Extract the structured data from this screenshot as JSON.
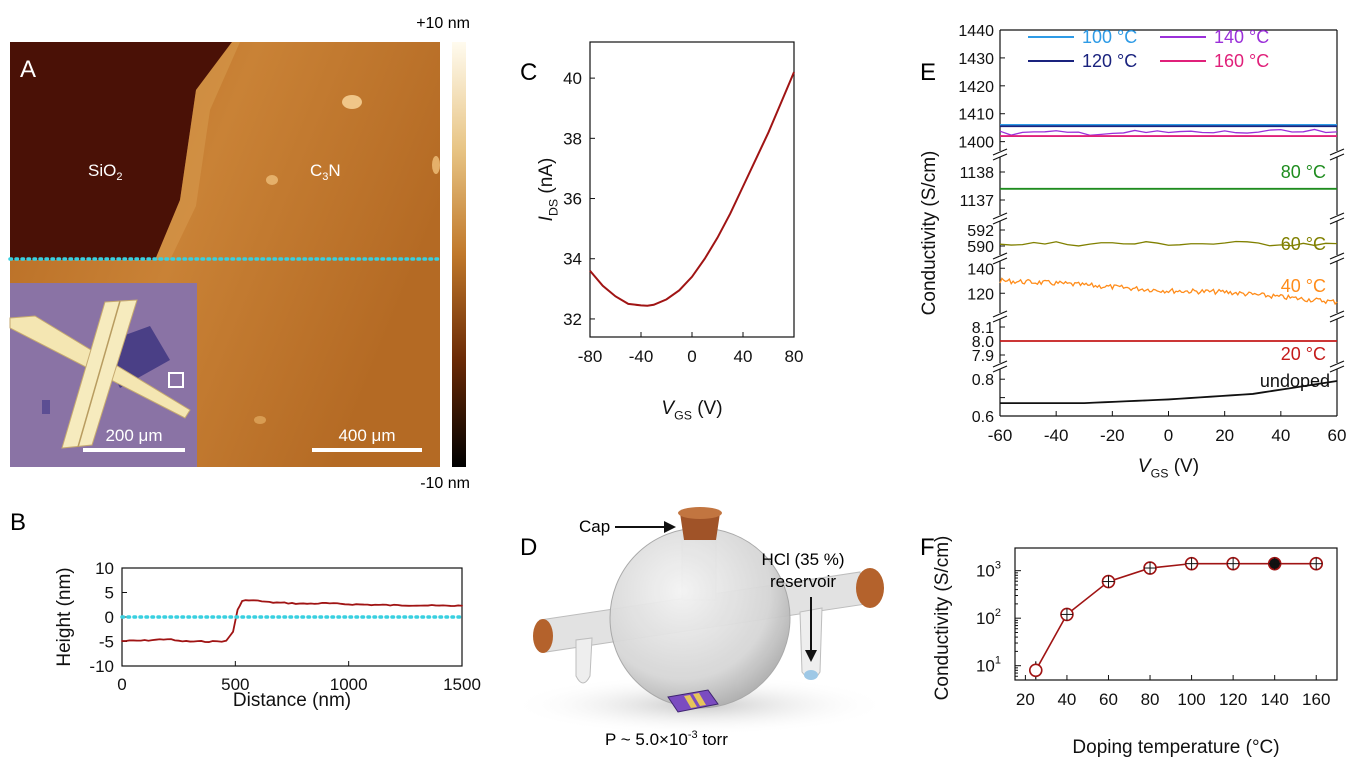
{
  "panels": {
    "A": {
      "letter": "A",
      "colorbar_top": "+10 nm",
      "colorbar_bottom": "-10 nm",
      "label_sio2": "SiO",
      "label_sio2_sub": "2",
      "label_c3n_main": "C",
      "label_c3n_sub": "3",
      "label_c3n_end": "N",
      "scale_inset": "200 μm",
      "scale_main": "400 μm"
    },
    "B": {
      "letter": "B"
    },
    "C": {
      "letter": "C"
    },
    "D": {
      "letter": "D",
      "label_cap": "Cap",
      "label_hcl_1": "HCl (35 %)",
      "label_hcl_2": "reservoir",
      "label_pressure": "P ~ 5.0×10",
      "label_pressure_exp": "-3",
      "label_pressure_unit": " torr"
    },
    "E": {
      "letter": "E"
    },
    "F": {
      "letter": "F"
    }
  },
  "chart_data": [
    {
      "panel": "B",
      "type": "line",
      "xlabel": "Distance (nm)",
      "ylabel": "Height (nm)",
      "xlim": [
        0,
        1500
      ],
      "ylim": [
        -10,
        10
      ],
      "xticks": [
        0,
        500,
        1000,
        1500
      ],
      "yticks": [
        -10,
        -5,
        0,
        5,
        10
      ],
      "series": [
        {
          "color": "#a01414",
          "x": [
            0,
            100,
            200,
            250,
            300,
            400,
            460,
            490,
            510,
            530,
            560,
            600,
            650,
            700,
            800,
            900,
            1000,
            1100,
            1200,
            1300,
            1400,
            1500
          ],
          "y": [
            -4.9,
            -4.8,
            -4.5,
            -4.9,
            -5.0,
            -5.0,
            -4.9,
            -3.0,
            1.5,
            3.2,
            3.5,
            3.3,
            3.0,
            2.9,
            2.7,
            2.8,
            2.6,
            2.5,
            2.4,
            2.4,
            2.3,
            2.3
          ]
        },
        {
          "color": "#39d0e0",
          "dotted": true,
          "x": [
            0,
            1500
          ],
          "y": [
            0,
            0
          ]
        }
      ]
    },
    {
      "panel": "C",
      "type": "line",
      "xlabel": "V",
      "xlabel_sub": "GS",
      "xlabel_unit": " (V)",
      "ylabel": "I",
      "ylabel_sub": "DS",
      "ylabel_unit": " (nA)",
      "xlim": [
        -80,
        80
      ],
      "ylim": [
        31.4,
        41.2
      ],
      "xticks": [
        -80,
        -40,
        0,
        40,
        80
      ],
      "yticks": [
        32,
        34,
        36,
        38,
        40
      ],
      "series": [
        {
          "color": "#a01414",
          "x": [
            -80,
            -70,
            -60,
            -50,
            -40,
            -35,
            -30,
            -20,
            -10,
            0,
            10,
            20,
            30,
            40,
            50,
            60,
            70,
            80
          ],
          "y": [
            33.6,
            33.1,
            32.75,
            32.5,
            32.45,
            32.44,
            32.47,
            32.65,
            32.95,
            33.4,
            34.0,
            34.7,
            35.5,
            36.4,
            37.3,
            38.2,
            39.2,
            40.2
          ]
        }
      ]
    },
    {
      "panel": "E",
      "type": "line",
      "broken_axis": true,
      "xlabel": "V",
      "xlabel_sub": "GS",
      "xlabel_unit": " (V)",
      "ylabel": "Conductivity (S/cm)",
      "xlim": [
        -60,
        60
      ],
      "xticks": [
        -60,
        -40,
        -20,
        0,
        20,
        40,
        60
      ],
      "segments": [
        {
          "yticks": [
            0.6,
            0.7,
            0.8
          ],
          "tick_labels": [
            "0.6",
            "",
            "0.8"
          ],
          "ylim": [
            0.6,
            0.85
          ]
        },
        {
          "yticks": [
            7.9,
            8.0,
            8.1
          ],
          "tick_labels": [
            "7.9",
            "8.0",
            "8.1"
          ],
          "ylim": [
            7.85,
            8.15
          ]
        },
        {
          "yticks": [
            120,
            140
          ],
          "tick_labels": [
            "120",
            "140"
          ],
          "ylim": [
            105,
            145
          ]
        },
        {
          "yticks": [
            590,
            592
          ],
          "tick_labels": [
            "590",
            "592"
          ],
          "ylim": [
            589,
            593
          ]
        },
        {
          "yticks": [
            1137,
            1138
          ],
          "tick_labels": [
            "1137",
            "1138"
          ],
          "ylim": [
            1136.5,
            1138.5
          ]
        },
        {
          "yticks": [
            1400,
            1410,
            1420,
            1430,
            1440
          ],
          "tick_labels": [
            "1400",
            "1410",
            "1420",
            "1430",
            "1440"
          ],
          "ylim": [
            1397,
            1440
          ]
        }
      ],
      "series": [
        {
          "name": "undoped",
          "color": "#111111",
          "segment": 0,
          "x": [
            -60,
            -30,
            0,
            30,
            60
          ],
          "y": [
            0.67,
            0.67,
            0.69,
            0.72,
            0.79
          ]
        },
        {
          "name": "20 °C",
          "color": "#c41a1a",
          "segment": 1,
          "x": [
            -60,
            60
          ],
          "y": [
            8.0,
            8.0
          ]
        },
        {
          "name": "40 °C",
          "color": "#ff8c1a",
          "segment": 2,
          "x": [
            -60,
            -40,
            -20,
            0,
            20,
            40,
            60
          ],
          "y": [
            130,
            128,
            125,
            122,
            121,
            117,
            113
          ],
          "noisy": true
        },
        {
          "name": "60 °C",
          "color": "#808000",
          "segment": 3,
          "x": [
            -60,
            60
          ],
          "y": [
            590.3,
            590.3
          ],
          "noisy": true
        },
        {
          "name": "80 °C",
          "color": "#1e8c1e",
          "segment": 4,
          "x": [
            -60,
            60
          ],
          "y": [
            1137.4,
            1137.4
          ]
        },
        {
          "name": "100 °C",
          "color": "#2e9be6",
          "segment": 5,
          "x": [
            -60,
            60
          ],
          "y": [
            1406,
            1406
          ]
        },
        {
          "name": "120 °C",
          "color": "#1a237e",
          "segment": 5,
          "x": [
            -60,
            60
          ],
          "y": [
            1405.5,
            1405.5
          ]
        },
        {
          "name": "140 °C",
          "color": "#9b30d9",
          "segment": 5,
          "x": [
            -60,
            60
          ],
          "y": [
            1403,
            1403.5
          ],
          "noisy": true
        },
        {
          "name": "160 °C",
          "color": "#e0207a",
          "segment": 5,
          "x": [
            -60,
            60
          ],
          "y": [
            1402,
            1402
          ]
        }
      ],
      "legend_labels": [
        "100 °C",
        "120 °C",
        "140 °C",
        "160 °C"
      ],
      "inline_labels": [
        "80 °C",
        "60 °C",
        "40 °C",
        "20 °C",
        "undoped"
      ]
    },
    {
      "panel": "F",
      "type": "scatter",
      "xlabel": "Doping temperature (°C)",
      "ylabel": "Conductivity (S/cm)",
      "yscale": "log",
      "xlim": [
        15,
        170
      ],
      "ylim": [
        5,
        3000
      ],
      "xticks": [
        20,
        40,
        60,
        80,
        100,
        120,
        140,
        160
      ],
      "ytick_labels": [
        "10",
        "10",
        "10"
      ],
      "ytick_exp": [
        "1",
        "2",
        "3"
      ],
      "ytick_values": [
        10,
        100,
        1000
      ],
      "series": [
        {
          "color": "#a01414",
          "x": [
            25,
            40,
            60,
            80,
            100,
            120,
            140,
            160
          ],
          "y": [
            8,
            120,
            590,
            1137,
            1406,
            1405,
            1403,
            1402
          ]
        }
      ]
    }
  ]
}
